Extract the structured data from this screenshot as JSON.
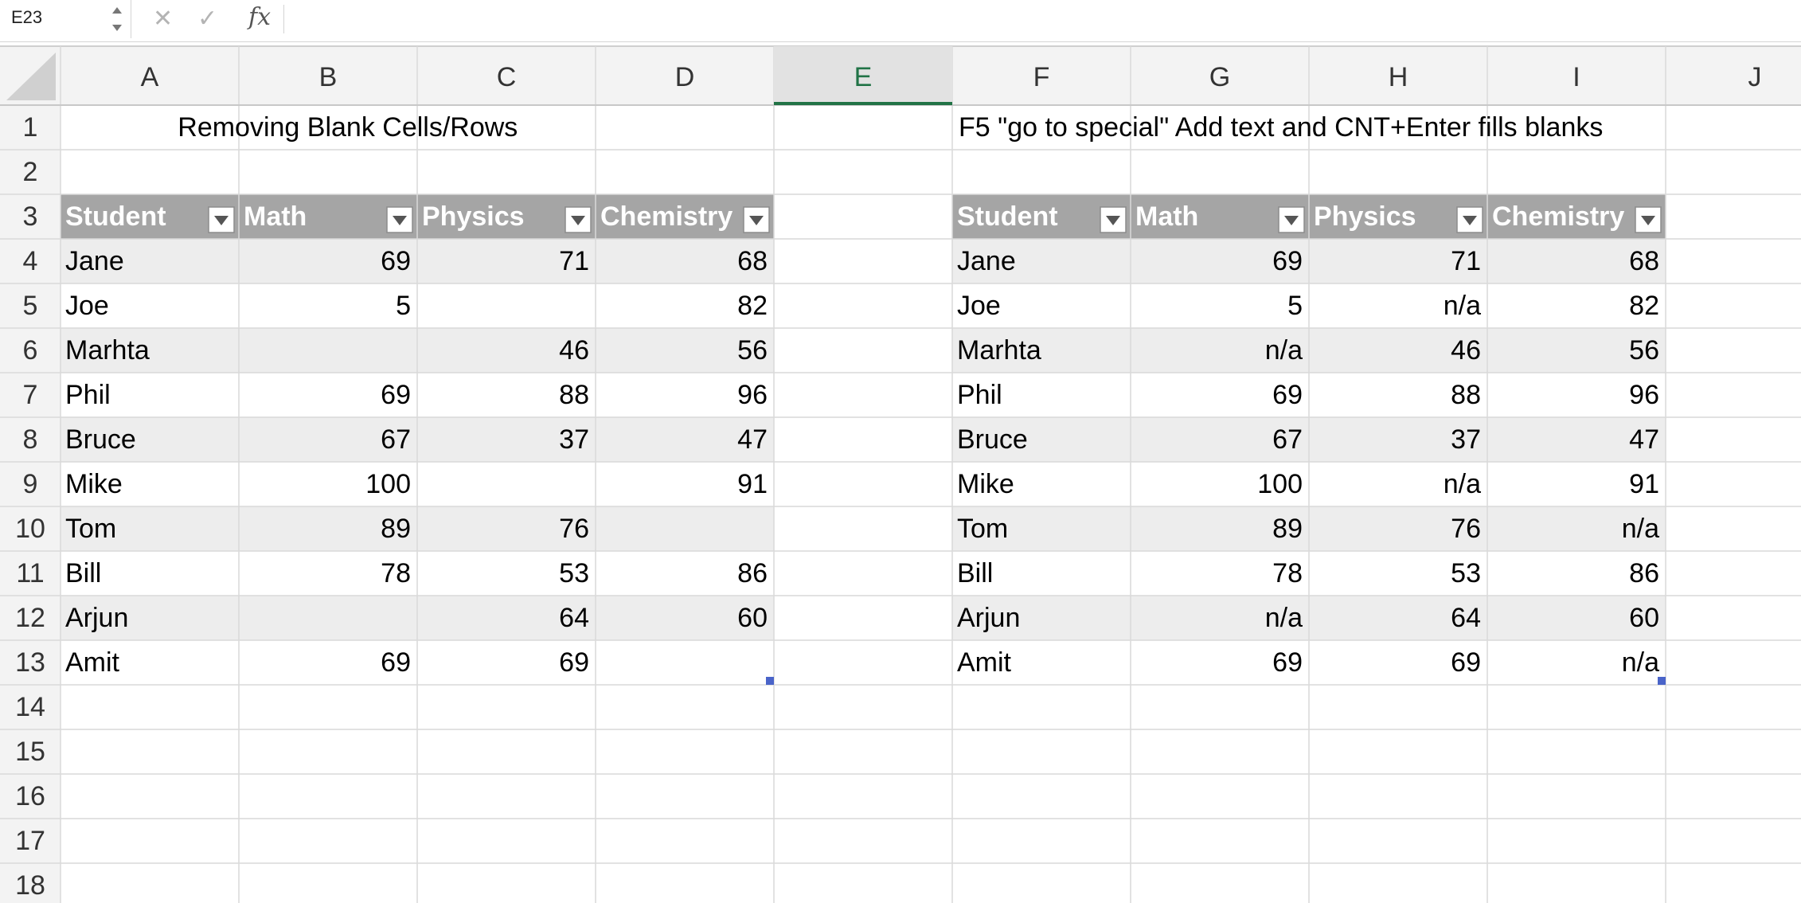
{
  "formula_bar": {
    "name_box": "E23",
    "cancel_icon": "✕",
    "enter_icon": "✓",
    "fx_label": "fx",
    "formula_value": ""
  },
  "sheet": {
    "selected_column": "E",
    "columns": [
      "A",
      "B",
      "C",
      "D",
      "E",
      "F",
      "G",
      "H",
      "I",
      "J"
    ],
    "rows": [
      "1",
      "2",
      "3",
      "4",
      "5",
      "6",
      "7",
      "8",
      "9",
      "10",
      "11",
      "12",
      "13",
      "14",
      "15",
      "16",
      "17",
      "18"
    ],
    "colors": {
      "grid_line": "#d9d9d9",
      "header_bg": "#f3f3f3",
      "header_text": "#333333",
      "selected_header_bg": "#e2e2e2",
      "selected_header_text": "#217346",
      "selected_header_underline": "#217346",
      "table_header_bg": "#a5a5a5",
      "table_header_text": "#ffffff",
      "band_bg": "#ededed",
      "text": "#000000",
      "fill_handle": "#4a64c9"
    }
  },
  "left_table": {
    "title": "Removing Blank Cells/Rows",
    "headers": [
      "Student",
      "Math",
      "Physics",
      "Chemistry"
    ],
    "rows": [
      [
        "Jane",
        "69",
        "71",
        "68"
      ],
      [
        "Joe",
        "5",
        "",
        "82"
      ],
      [
        "Marhta",
        "",
        "46",
        "56"
      ],
      [
        "Phil",
        "69",
        "88",
        "96"
      ],
      [
        "Bruce",
        "67",
        "37",
        "47"
      ],
      [
        "Mike",
        "100",
        "",
        "91"
      ],
      [
        "Tom",
        "89",
        "76",
        ""
      ],
      [
        "Bill",
        "78",
        "53",
        "86"
      ],
      [
        "Arjun",
        "",
        "64",
        "60"
      ],
      [
        "Amit",
        "69",
        "69",
        ""
      ]
    ]
  },
  "right_table": {
    "title": "F5 \"go to special\"  Add text and CNT+Enter fills blanks",
    "headers": [
      "Student",
      "Math",
      "Physics",
      "Chemistry"
    ],
    "rows": [
      [
        "Jane",
        "69",
        "71",
        "68"
      ],
      [
        "Joe",
        "5",
        "n/a",
        "82"
      ],
      [
        "Marhta",
        "n/a",
        "46",
        "56"
      ],
      [
        "Phil",
        "69",
        "88",
        "96"
      ],
      [
        "Bruce",
        "67",
        "37",
        "47"
      ],
      [
        "Mike",
        "100",
        "n/a",
        "91"
      ],
      [
        "Tom",
        "89",
        "76",
        "n/a"
      ],
      [
        "Bill",
        "78",
        "53",
        "86"
      ],
      [
        "Arjun",
        "n/a",
        "64",
        "60"
      ],
      [
        "Amit",
        "69",
        "69",
        "n/a"
      ]
    ]
  }
}
